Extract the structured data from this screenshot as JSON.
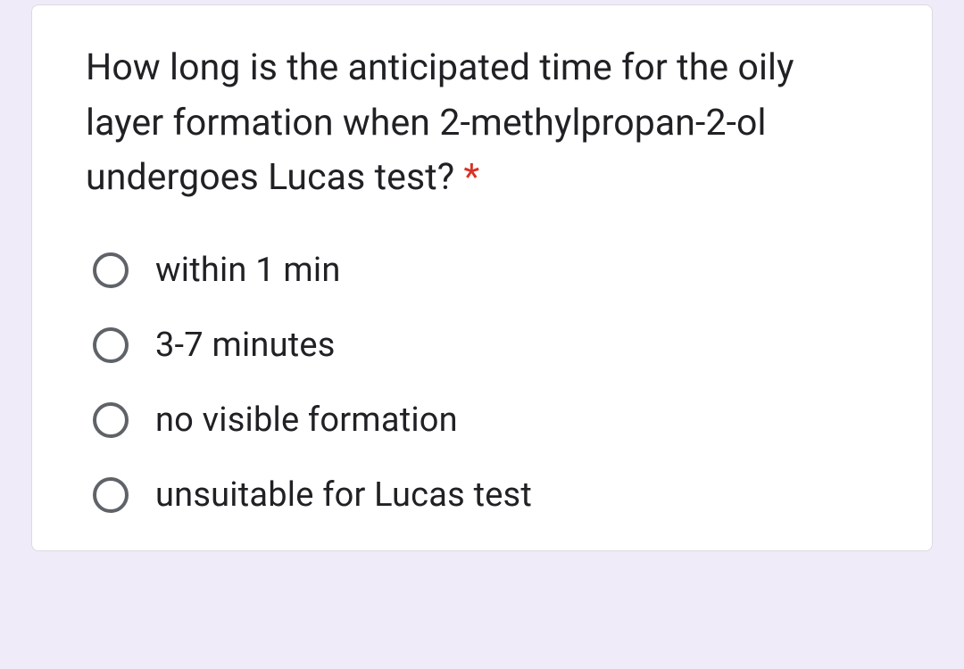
{
  "question": {
    "text": "How long is the anticipated time for the oily layer formation when 2-methylpropan-2-ol undergoes Lucas test?",
    "required_marker": "*"
  },
  "options": [
    {
      "label": "within 1 min"
    },
    {
      "label": "3-7 minutes"
    },
    {
      "label": "no visible formation"
    },
    {
      "label": "unsuitable for Lucas test"
    }
  ],
  "colors": {
    "page_background": "#f0ebf8",
    "card_background": "#ffffff",
    "card_border": "#dadce0",
    "text_primary": "#202124",
    "radio_border": "#5f6368",
    "required": "#d93025"
  }
}
